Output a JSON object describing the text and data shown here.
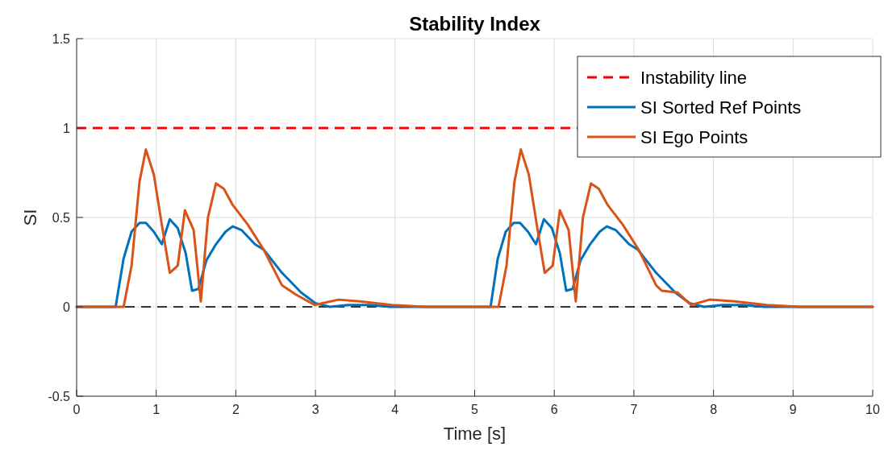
{
  "chart_data": {
    "type": "line",
    "title": "Stability Index",
    "xlabel": "Time [s]",
    "ylabel": "SI",
    "xlim": [
      0,
      10
    ],
    "xticks": [
      0,
      1,
      2,
      3,
      4,
      5,
      6,
      7,
      8,
      9,
      10
    ],
    "ylim": [
      -0.5,
      1.5
    ],
    "yticks": [
      -0.5,
      0,
      0.5,
      1,
      1.5
    ],
    "grid": true,
    "legend": "top right",
    "line_style": "solid",
    "marker": "none",
    "ref_lines": [
      {
        "axis": "y",
        "value": 1,
        "label": "Instability line",
        "color": "#ff0000",
        "line_style": "dashed"
      },
      {
        "axis": "y",
        "value": 0,
        "color": "#333333",
        "line_style": "dashed"
      }
    ],
    "series": [
      {
        "name": "SI Sorted Ref Points",
        "color": "#0072bd",
        "x": [
          0,
          0.49,
          0.59,
          0.69,
          0.79,
          0.87,
          0.97,
          1.07,
          1.17,
          1.27,
          1.37,
          1.45,
          1.53,
          1.63,
          1.75,
          1.87,
          1.96,
          2.07,
          2.24,
          2.35,
          2.58,
          2.82,
          3.0,
          3.18,
          3.41,
          3.68,
          3.94,
          5.2,
          5.29,
          5.39,
          5.49,
          5.57,
          5.67,
          5.77,
          5.87,
          5.97,
          6.07,
          6.15,
          6.23,
          6.33,
          6.45,
          6.57,
          6.66,
          6.77,
          6.94,
          7.05,
          7.28,
          7.52,
          7.7,
          7.88,
          8.11,
          8.38,
          8.64,
          10
        ],
        "values": [
          0,
          0,
          0.27,
          0.42,
          0.47,
          0.47,
          0.42,
          0.35,
          0.49,
          0.44,
          0.3,
          0.09,
          0.1,
          0.26,
          0.35,
          0.42,
          0.45,
          0.43,
          0.35,
          0.32,
          0.19,
          0.08,
          0.02,
          0,
          0.01,
          0.01,
          0,
          0,
          0.27,
          0.42,
          0.47,
          0.47,
          0.42,
          0.35,
          0.49,
          0.44,
          0.3,
          0.09,
          0.1,
          0.26,
          0.35,
          0.42,
          0.45,
          0.43,
          0.35,
          0.32,
          0.19,
          0.08,
          0.02,
          0,
          0.01,
          0.01,
          0,
          0
        ]
      },
      {
        "name": "SI Ego Points",
        "color": "#d95319",
        "x": [
          0,
          0.59,
          0.69,
          0.79,
          0.87,
          0.97,
          1.07,
          1.17,
          1.27,
          1.36,
          1.47,
          1.56,
          1.65,
          1.75,
          1.85,
          1.96,
          2.15,
          2.35,
          2.58,
          2.75,
          2.99,
          3.09,
          3.29,
          3.56,
          3.96,
          4.37,
          5.3,
          5.4,
          5.5,
          5.58,
          5.68,
          5.78,
          5.88,
          5.98,
          6.07,
          6.18,
          6.27,
          6.36,
          6.46,
          6.56,
          6.67,
          6.86,
          7.06,
          7.28,
          7.35,
          7.55,
          7.72,
          7.95,
          8.27,
          8.67,
          9.08,
          10
        ],
        "values": [
          0,
          0,
          0.23,
          0.7,
          0.88,
          0.74,
          0.46,
          0.19,
          0.23,
          0.54,
          0.43,
          0.03,
          0.5,
          0.69,
          0.66,
          0.57,
          0.46,
          0.32,
          0.12,
          0.07,
          0.01,
          0.02,
          0.04,
          0.03,
          0.01,
          0,
          0,
          0.23,
          0.7,
          0.88,
          0.74,
          0.46,
          0.19,
          0.23,
          0.54,
          0.43,
          0.03,
          0.5,
          0.69,
          0.66,
          0.57,
          0.46,
          0.32,
          0.12,
          0.09,
          0.08,
          0.01,
          0.04,
          0.03,
          0.01,
          0,
          0
        ]
      }
    ]
  }
}
